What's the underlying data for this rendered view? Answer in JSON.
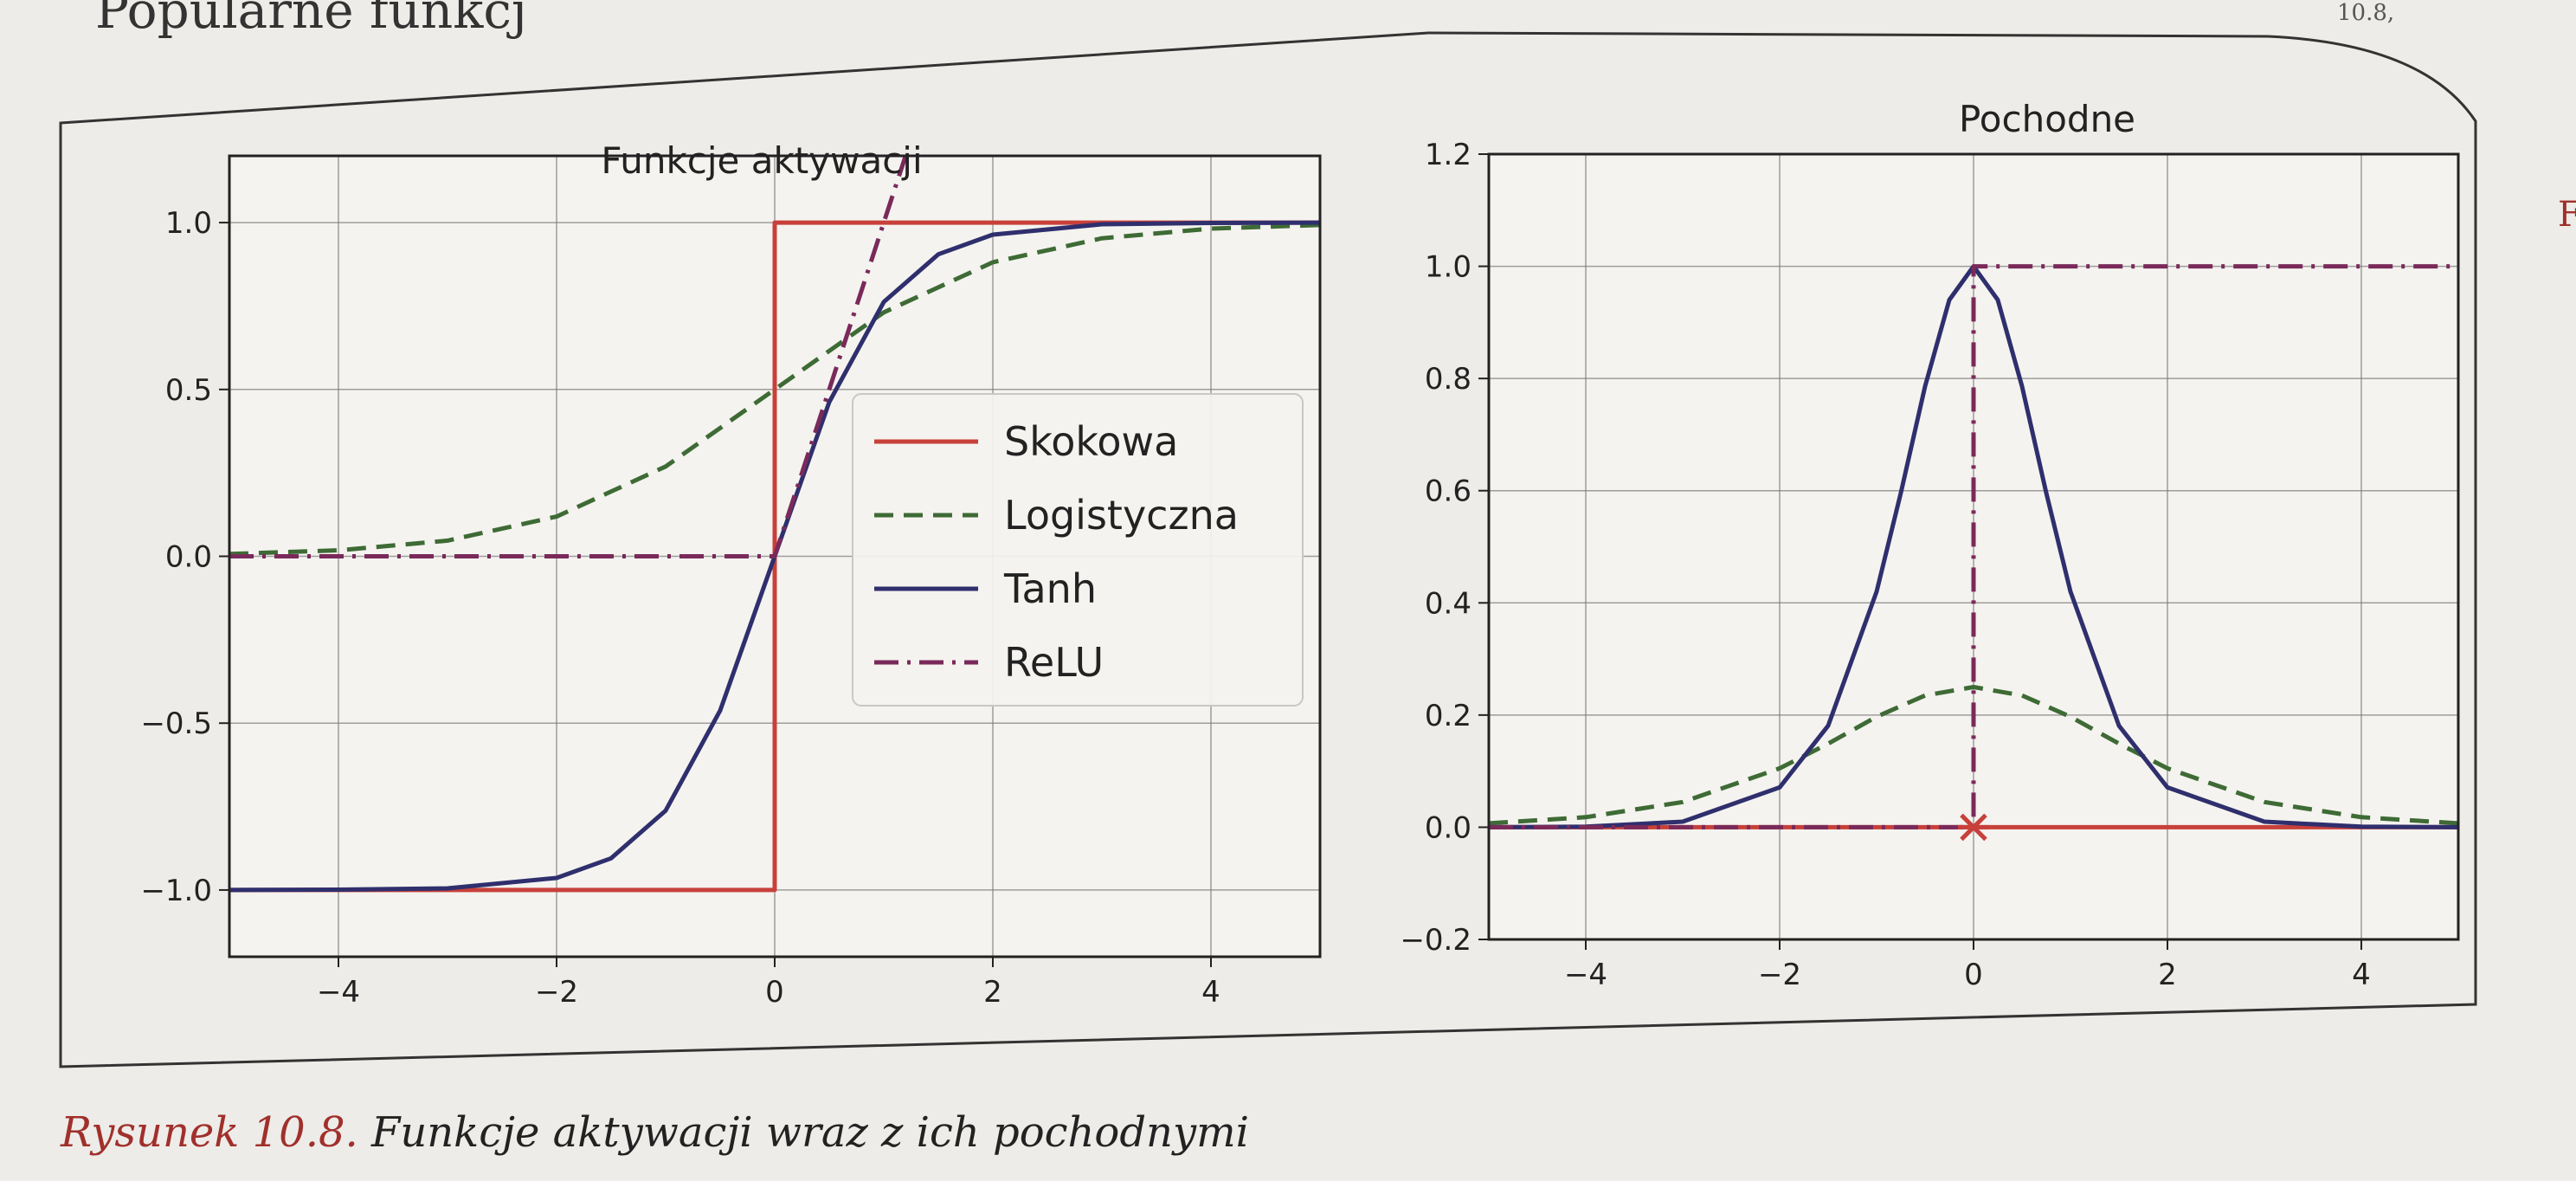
{
  "page": {
    "top_text": "Popularne funkcj",
    "corner_text": "10.8,",
    "side_letter": "F"
  },
  "caption": {
    "number": "Rysunek 10.8.",
    "text": " Funkcje aktywacji wraz z ich pochodnymi"
  },
  "colors": {
    "step": "#c8403a",
    "logistic": "#3e6b35",
    "tanh": "#2f2f6e",
    "relu": "#7a2a5a",
    "grid": "#7a7a7a",
    "frame": "#222222"
  },
  "chart_data": [
    {
      "type": "line",
      "title": "Funkcje aktywacji",
      "xlim": [
        -5,
        5
      ],
      "ylim": [
        -1.2,
        1.2
      ],
      "xticks": [
        -4,
        -2,
        0,
        2,
        4
      ],
      "xtick_labels": [
        "−4",
        "−2",
        "0",
        "2",
        "4"
      ],
      "yticks": [
        -1.0,
        -0.5,
        0.0,
        0.5,
        1.0
      ],
      "ytick_labels": [
        "−1.0",
        "−0.5",
        "0.0",
        "0.5",
        "1.0"
      ],
      "grid": true,
      "legend_position": "center-right",
      "series": [
        {
          "name": "Skokowa",
          "style": "solid",
          "color_key": "step",
          "x": [
            -5,
            0,
            0,
            5
          ],
          "y": [
            -1,
            -1,
            1,
            1
          ]
        },
        {
          "name": "Logistyczna",
          "style": "dashed",
          "color_key": "logistic",
          "x": [
            -5,
            -4,
            -3,
            -2,
            -1,
            0,
            1,
            2,
            3,
            4,
            5
          ],
          "y": [
            0.007,
            0.018,
            0.047,
            0.119,
            0.269,
            0.5,
            0.731,
            0.881,
            0.953,
            0.982,
            0.993
          ]
        },
        {
          "name": "Tanh",
          "style": "solid",
          "color_key": "tanh",
          "x": [
            -5,
            -4,
            -3,
            -2,
            -1.5,
            -1,
            -0.5,
            0,
            0.5,
            1,
            1.5,
            2,
            3,
            4,
            5
          ],
          "y": [
            -1.0,
            -0.999,
            -0.995,
            -0.964,
            -0.905,
            -0.762,
            -0.462,
            0,
            0.462,
            0.762,
            0.905,
            0.964,
            0.995,
            0.999,
            1.0
          ]
        },
        {
          "name": "ReLU",
          "style": "dashdot",
          "color_key": "relu",
          "x": [
            -5,
            0,
            1.2
          ],
          "y": [
            0,
            0,
            1.2
          ]
        }
      ]
    },
    {
      "type": "line",
      "title": "Pochodne",
      "xlim": [
        -5,
        5
      ],
      "ylim": [
        -0.2,
        1.2
      ],
      "xticks": [
        -4,
        -2,
        0,
        2,
        4
      ],
      "xtick_labels": [
        "−4",
        "−2",
        "0",
        "2",
        "4"
      ],
      "yticks": [
        -0.2,
        0.0,
        0.2,
        0.4,
        0.6,
        0.8,
        1.0,
        1.2
      ],
      "ytick_labels": [
        "−0.2",
        "0.0",
        "0.2",
        "0.4",
        "0.6",
        "0.8",
        "1.0",
        "1.2"
      ],
      "grid": true,
      "series": [
        {
          "name": "Skokowa",
          "style": "solid",
          "color_key": "step",
          "x": [
            -5,
            5
          ],
          "y": [
            0,
            0
          ],
          "marker_at": [
            0,
            0
          ]
        },
        {
          "name": "Logistyczna",
          "style": "dashed",
          "color_key": "logistic",
          "x": [
            -5,
            -4,
            -3,
            -2,
            -1.5,
            -1,
            -0.5,
            0,
            0.5,
            1,
            1.5,
            2,
            3,
            4,
            5
          ],
          "y": [
            0.007,
            0.018,
            0.045,
            0.105,
            0.149,
            0.197,
            0.235,
            0.25,
            0.235,
            0.197,
            0.149,
            0.105,
            0.045,
            0.018,
            0.007
          ]
        },
        {
          "name": "Tanh",
          "style": "solid",
          "color_key": "tanh",
          "x": [
            -5,
            -4,
            -3,
            -2,
            -1.5,
            -1,
            -0.75,
            -0.5,
            -0.25,
            0,
            0.25,
            0.5,
            0.75,
            1,
            1.5,
            2,
            3,
            4,
            5
          ],
          "y": [
            0.0,
            0.001,
            0.01,
            0.071,
            0.181,
            0.42,
            0.596,
            0.786,
            0.94,
            1.0,
            0.94,
            0.786,
            0.596,
            0.42,
            0.181,
            0.071,
            0.01,
            0.001,
            0.0
          ]
        },
        {
          "name": "ReLU",
          "style": "dashdot",
          "color_key": "relu",
          "x": [
            -5,
            0,
            0,
            5
          ],
          "y": [
            0,
            0,
            1,
            1
          ]
        }
      ]
    }
  ]
}
